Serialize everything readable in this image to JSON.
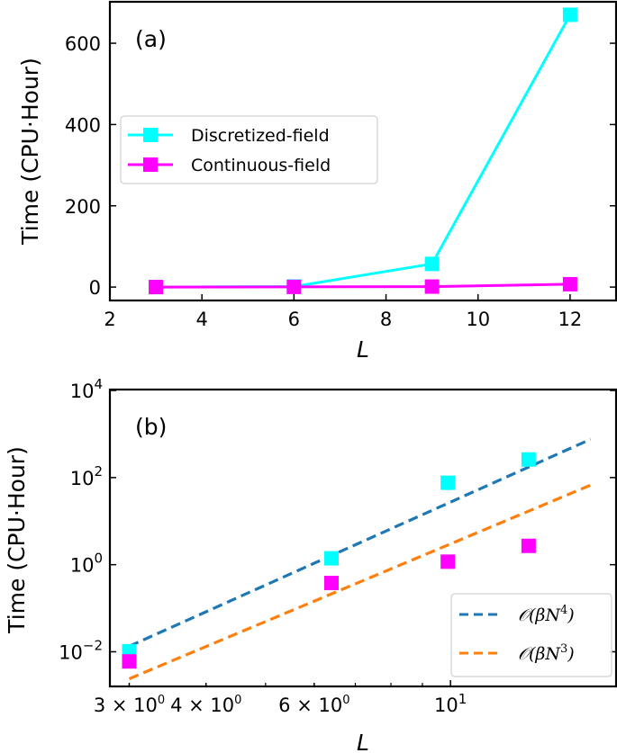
{
  "chart_data": [
    {
      "panel": "(a)",
      "type": "line",
      "title": "",
      "xlabel": "L",
      "ylabel": "Time (CPU·Hour)",
      "xlim": [
        2,
        13
      ],
      "ylim": [
        -33,
        702
      ],
      "x_ticks": [
        2,
        4,
        6,
        8,
        10,
        12
      ],
      "x_tick_labels": [
        "2",
        "4",
        "6",
        "8",
        "10",
        "12"
      ],
      "y_ticks": [
        0,
        200,
        400,
        600
      ],
      "y_tick_labels": [
        "0",
        "200",
        "400",
        "600"
      ],
      "grid": false,
      "legend_position": "center-left",
      "series": [
        {
          "name": "Discretized-field",
          "color": "#00ffff",
          "marker": "square",
          "x": [
            3,
            6,
            9,
            12
          ],
          "values": [
            0.01,
            1.4,
            57,
            670
          ]
        },
        {
          "name": "Continuous-field",
          "color": "#ff00ff",
          "marker": "square",
          "x": [
            3,
            6,
            9,
            12
          ],
          "values": [
            0.006,
            0.4,
            1.2,
            7
          ]
        }
      ]
    },
    {
      "panel": "(b)",
      "type": "scatter",
      "title": "",
      "xlabel": "L",
      "ylabel": "Time (CPU·Hour)",
      "xscale": "log",
      "yscale": "log",
      "xlim": [
        2.79,
        18.6
      ],
      "ylim": [
        0.0016,
        10500
      ],
      "x_ticks": [
        3,
        4,
        6,
        10
      ],
      "x_tick_labels": [
        {
          "mant": "3 × 10",
          "exp": "0"
        },
        {
          "mant": "4 × 10",
          "exp": "0"
        },
        {
          "mant": "6 × 10",
          "exp": "0"
        },
        {
          "mant": "10",
          "exp": "1"
        }
      ],
      "x_minor_ticks": [
        5,
        7,
        8,
        9
      ],
      "y_ticks": [
        0.01,
        1,
        100,
        10000
      ],
      "y_tick_labels": [
        {
          "mant": "10",
          "exp": "−2"
        },
        {
          "mant": "10",
          "exp": "0"
        },
        {
          "mant": "10",
          "exp": "2"
        },
        {
          "mant": "10",
          "exp": "4"
        }
      ],
      "grid": false,
      "legend_position": "lower-right",
      "series": [
        {
          "name": "Discretized-field",
          "color": "#00ffff",
          "marker": "square",
          "x": [
            3.0,
            6.4,
            9.9,
            13.4
          ],
          "values": [
            0.0103,
            1.4,
            76,
            260
          ]
        },
        {
          "name": "Continuous-field",
          "color": "#ff00ff",
          "marker": "square",
          "x": [
            3.0,
            6.4,
            9.9,
            13.4
          ],
          "values": [
            0.006,
            0.38,
            1.17,
            2.7
          ]
        }
      ],
      "fit_lines": [
        {
          "name": "O(βN⁴)",
          "label_main": "𝒪(βN",
          "label_exp": "4",
          "label_close": ")",
          "color": "#1f77b4",
          "style": "dashed",
          "x": [
            3.0,
            16.9
          ],
          "values": [
            0.0134,
            757
          ]
        },
        {
          "name": "O(βN³)",
          "label_main": "𝒪(βN",
          "label_exp": "3",
          "label_close": ")",
          "color": "#ff7f0e",
          "style": "dashed",
          "x": [
            3.0,
            16.9
          ],
          "values": [
            0.0024,
            67
          ]
        }
      ]
    }
  ]
}
